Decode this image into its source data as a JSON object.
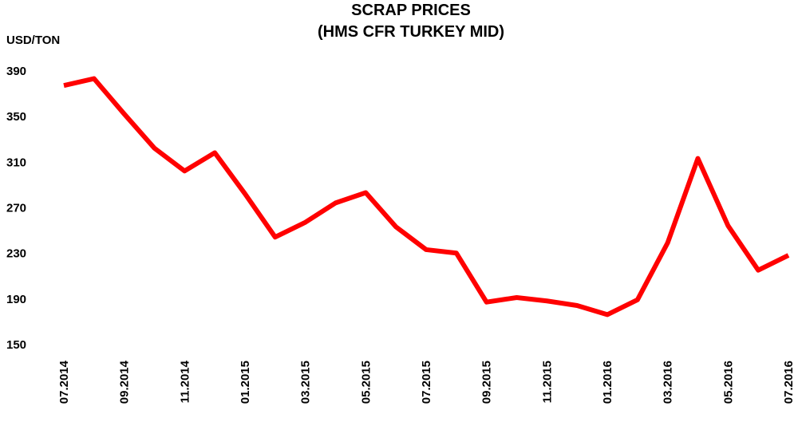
{
  "chart_data": {
    "type": "line",
    "title": "SCRAP PRICES",
    "subtitle": "(HMS CFR TURKEY MID)",
    "y_label": "USD/TON",
    "categories": [
      "07.2014",
      null,
      "09.2014",
      null,
      "11.2014",
      null,
      "01.2015",
      null,
      "03.2015",
      null,
      "05.2015",
      null,
      "07.2015",
      null,
      "09.2015",
      null,
      "11.2015",
      null,
      "01.2016",
      null,
      "03.2016",
      null,
      "05.2016",
      null,
      "07.2016"
    ],
    "series": [
      {
        "name": "HMS CFR Turkey mid",
        "color": "#ff0000",
        "values": [
          378,
          384,
          353,
          323,
          303,
          319,
          283,
          245,
          258,
          275,
          284,
          254,
          234,
          231,
          188,
          192,
          189,
          185,
          177,
          190,
          240,
          314,
          255,
          216,
          229
        ]
      }
    ],
    "ylim": [
      150,
      390
    ],
    "yticks": [
      150,
      190,
      230,
      270,
      310,
      350,
      390
    ],
    "grid": false
  }
}
